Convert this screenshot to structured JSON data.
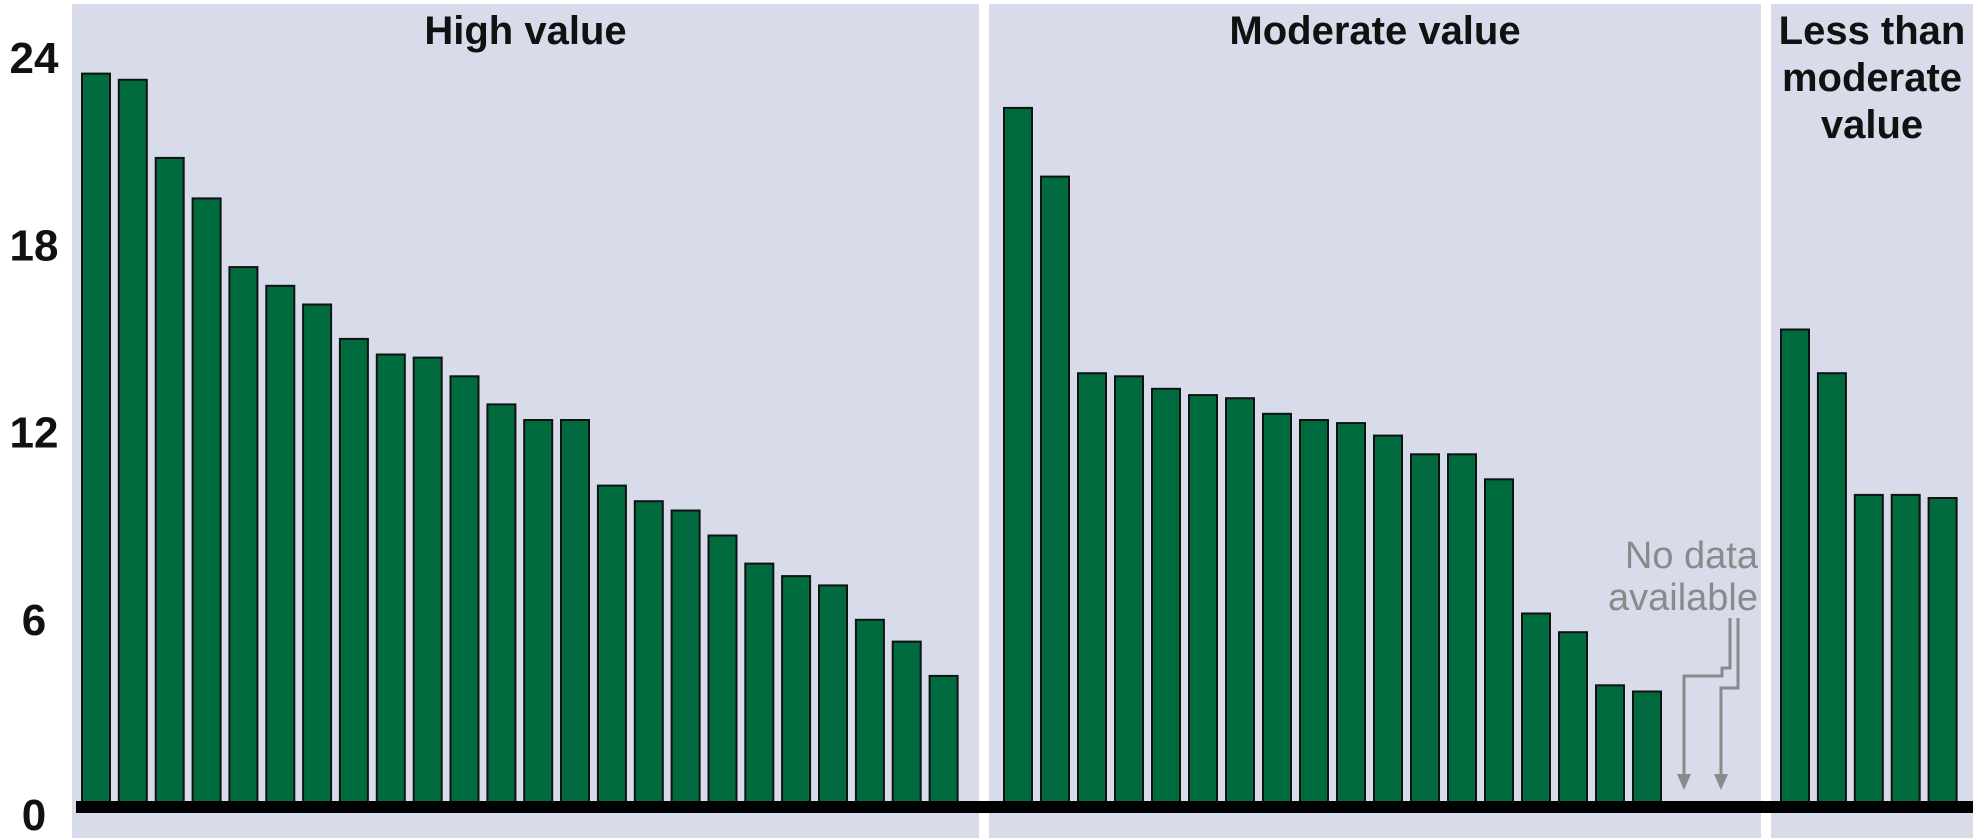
{
  "chart_data": {
    "type": "bar",
    "title": "",
    "xlabel": "",
    "ylabel": "",
    "ylim": [
      0,
      24
    ],
    "yticks": [
      0,
      6,
      12,
      18,
      24
    ],
    "grid": false,
    "colors": {
      "bar": "#006b3f",
      "bar_outline": "#111111",
      "panel_background": "#d8dcea",
      "baseline": "#000000",
      "annotation": "#8a8a8a"
    },
    "groups": [
      {
        "label": "High value",
        "values": [
          23.5,
          23.3,
          20.8,
          19.5,
          17.3,
          16.7,
          16.1,
          15.0,
          14.5,
          14.4,
          13.8,
          12.9,
          12.4,
          12.4,
          10.3,
          9.8,
          9.5,
          8.7,
          7.8,
          7.4,
          7.1,
          6.0,
          5.3,
          4.2
        ]
      },
      {
        "label": "Moderate value",
        "values": [
          22.4,
          20.2,
          13.9,
          13.8,
          13.4,
          13.2,
          13.1,
          12.6,
          12.4,
          12.3,
          11.9,
          11.3,
          11.3,
          10.5,
          6.2,
          5.6,
          3.9,
          3.7,
          null,
          null
        ]
      },
      {
        "label": "Less than moderate value",
        "label_lines": [
          "Less than",
          "moderate",
          "value"
        ],
        "values": [
          15.3,
          13.9,
          10.0,
          10.0,
          9.9
        ]
      }
    ],
    "annotations": [
      {
        "text_lines": [
          "No data",
          "available"
        ],
        "group": "Moderate value",
        "targets": [
          18,
          19
        ]
      }
    ]
  }
}
